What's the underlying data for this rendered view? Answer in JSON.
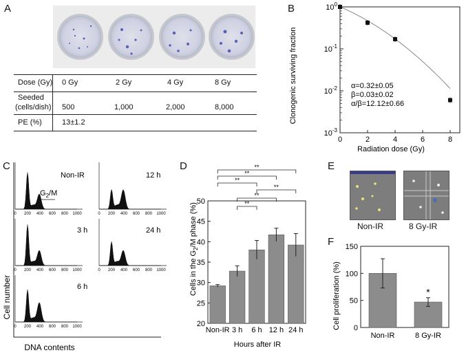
{
  "panels": {
    "a": "A",
    "b": "B",
    "c": "C",
    "d": "D",
    "e": "E",
    "f": "F"
  },
  "panel_a": {
    "table": {
      "dose_label": "Dose (Gy)",
      "doses": [
        "0 Gy",
        "2 Gy",
        "4 Gy",
        "8 Gy"
      ],
      "seeded_label_line1": "Seeded",
      "seeded_label_line2": "(cells/dish)",
      "seeded": [
        "500",
        "1,000",
        "2,000",
        "8,000"
      ],
      "pe_label": "PE (%)",
      "pe_value": "13±1.2"
    }
  },
  "panel_b": {
    "ylabel": "Clonogenic surviving fraction",
    "xlabel": "Radiation dose (Gy)",
    "params": [
      "α=0.32±0.05",
      "β=0.03±0.02",
      "α/β=12.12±0.66"
    ],
    "yticks": [
      "10",
      "10",
      "10",
      "10"
    ],
    "yexp": [
      "0",
      "-1",
      "-2",
      "-3"
    ],
    "xticks": [
      "0",
      "2",
      "4",
      "6",
      "8"
    ]
  },
  "panel_c": {
    "ylabel": "Cell number",
    "xlabel": "DNA contents",
    "labels": [
      "Non-IR",
      "12 h",
      "3 h",
      "24 h",
      "6 h"
    ],
    "g2m_g": "G",
    "g2m_sub": "2",
    "g2m_m": "/M",
    "xticks": [
      "0",
      "200",
      "400",
      "600",
      "800",
      "1000"
    ]
  },
  "panel_d": {
    "ylabel_pre": "Cells in the G",
    "ylabel_sub": "2",
    "ylabel_post": "/M phase (%)",
    "xlabel": "Hours after IR",
    "sig": "**"
  },
  "panel_e": {
    "labels": [
      "Non-IR",
      "8 Gy-IR"
    ]
  },
  "panel_f": {
    "ylabel": "Cell proliferation (%)",
    "star": "*"
  },
  "chart_data": [
    {
      "type": "scatter",
      "title": "",
      "xlabel": "Radiation dose (Gy)",
      "ylabel": "Clonogenic surviving fraction",
      "yscale": "log",
      "x": [
        0,
        2,
        4,
        8
      ],
      "y": [
        1.0,
        0.42,
        0.17,
        0.006
      ],
      "fit": "linear-quadratic",
      "xlim": [
        0,
        8.7
      ],
      "ylim": [
        0.001,
        1
      ]
    },
    {
      "type": "bar",
      "xlabel": "Hours after IR",
      "ylabel": "Cells in the G2/M phase (%)",
      "categories": [
        "Non-IR",
        "3 h",
        "6 h",
        "12 h",
        "24 h"
      ],
      "values": [
        29.2,
        32.8,
        38,
        41.7,
        39.2
      ],
      "errors": [
        0.3,
        1.3,
        2.3,
        1.6,
        2.8
      ],
      "ylim": [
        20,
        50
      ],
      "yticks": [
        20,
        25,
        30,
        35,
        40,
        45,
        50
      ],
      "significance_pairs": [
        [
          "Non-IR",
          "24 h"
        ],
        [
          "Non-IR",
          "12 h"
        ],
        [
          "Non-IR",
          "6 h"
        ],
        [
          "3 h",
          "6 h"
        ],
        [
          "3 h",
          "12 h"
        ],
        [
          "6 h",
          "24 h"
        ]
      ]
    },
    {
      "type": "bar",
      "ylabel": "Cell proliferation (%)",
      "categories": [
        "Non-IR",
        "8 Gy-IR"
      ],
      "values": [
        100,
        47
      ],
      "errors": [
        27,
        8
      ],
      "ylim": [
        0,
        150
      ],
      "yticks": [
        0,
        50,
        100,
        150
      ]
    }
  ]
}
